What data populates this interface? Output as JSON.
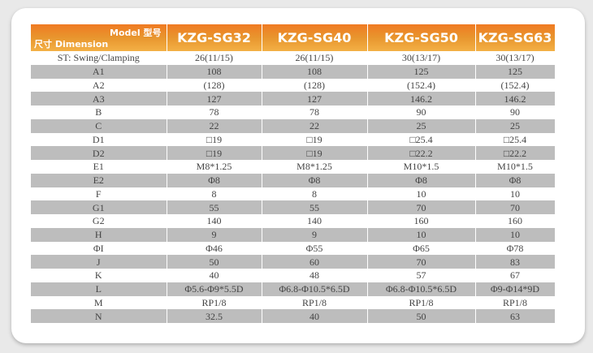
{
  "header": {
    "model_label": "Model 型号",
    "dimension_label": "尺寸 Dimension",
    "models": [
      "KZG-SG32",
      "KZG-SG40",
      "KZG-SG50",
      "KZG-SG63"
    ]
  },
  "rows": [
    {
      "label": "ST: Swing/Clamping",
      "values": [
        "26(11/15)",
        "26(11/15)",
        "30(13/17)",
        "30(13/17)"
      ]
    },
    {
      "label": "A1",
      "values": [
        "108",
        "108",
        "125",
        "125"
      ]
    },
    {
      "label": "A2",
      "values": [
        "(128)",
        "(128)",
        "(152.4)",
        "(152.4)"
      ]
    },
    {
      "label": "A3",
      "values": [
        "127",
        "127",
        "146.2",
        "146.2"
      ]
    },
    {
      "label": "B",
      "values": [
        "78",
        "78",
        "90",
        "90"
      ]
    },
    {
      "label": "C",
      "values": [
        "22",
        "22",
        "25",
        "25"
      ]
    },
    {
      "label": "D1",
      "values": [
        "□19",
        "□19",
        "□25.4",
        "□25.4"
      ]
    },
    {
      "label": "D2",
      "values": [
        "□19",
        "□19",
        "□22.2",
        "□22.2"
      ]
    },
    {
      "label": "E1",
      "values": [
        "M8*1.25",
        "M8*1.25",
        "M10*1.5",
        "M10*1.5"
      ]
    },
    {
      "label": "E2",
      "values": [
        "Φ8",
        "Φ8",
        "Φ8",
        "Φ8"
      ]
    },
    {
      "label": "F",
      "values": [
        "8",
        "8",
        "10",
        "10"
      ]
    },
    {
      "label": "G1",
      "values": [
        "55",
        "55",
        "70",
        "70"
      ]
    },
    {
      "label": "G2",
      "values": [
        "140",
        "140",
        "160",
        "160"
      ]
    },
    {
      "label": "H",
      "values": [
        "9",
        "9",
        "10",
        "10"
      ]
    },
    {
      "label": "ΦI",
      "values": [
        "Φ46",
        "Φ55",
        "Φ65",
        "Φ78"
      ]
    },
    {
      "label": "J",
      "values": [
        "50",
        "60",
        "70",
        "83"
      ]
    },
    {
      "label": "K",
      "values": [
        "40",
        "48",
        "57",
        "67"
      ]
    },
    {
      "label": "L",
      "values": [
        "Φ5.6-Φ9*5.5D",
        "Φ6.8-Φ10.5*6.5D",
        "Φ6.8-Φ10.5*6.5D",
        "Φ9-Φ14*9D"
      ]
    },
    {
      "label": "M",
      "values": [
        "RP1/8",
        "RP1/8",
        "RP1/8",
        "RP1/8"
      ]
    },
    {
      "label": "N",
      "values": [
        "32.5",
        "40",
        "50",
        "63"
      ]
    }
  ],
  "colors": {
    "header_orange": "#ee8a28",
    "stripe_gray": "#bdbdbd"
  }
}
